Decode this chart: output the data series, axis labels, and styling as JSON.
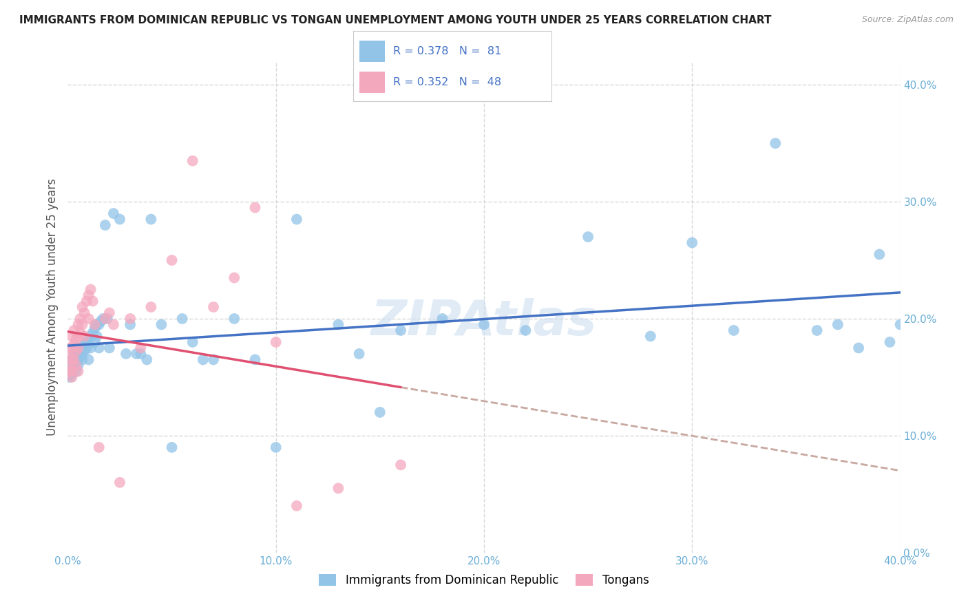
{
  "title": "IMMIGRANTS FROM DOMINICAN REPUBLIC VS TONGAN UNEMPLOYMENT AMONG YOUTH UNDER 25 YEARS CORRELATION CHART",
  "source": "Source: ZipAtlas.com",
  "ylabel": "Unemployment Among Youth under 25 years",
  "xlim": [
    0,
    0.4
  ],
  "ylim": [
    0,
    0.42
  ],
  "legend_r1": "R = 0.378",
  "legend_n1": "N =  81",
  "legend_r2": "R = 0.352",
  "legend_n2": "N =  48",
  "blue_color": "#92C4E8",
  "pink_color": "#F4A8BE",
  "trend_blue": "#4472C4",
  "trend_pink": "#E05070",
  "trend_dashed_color": "#C8A8A0",
  "background_color": "#FFFFFF",
  "grid_color": "#D8D8D8",
  "blue_x": [
    0.001,
    0.001,
    0.001,
    0.001,
    0.002,
    0.002,
    0.002,
    0.002,
    0.003,
    0.003,
    0.003,
    0.004,
    0.004,
    0.004,
    0.004,
    0.005,
    0.005,
    0.005,
    0.006,
    0.006,
    0.006,
    0.007,
    0.007,
    0.007,
    0.008,
    0.008,
    0.009,
    0.009,
    0.01,
    0.01,
    0.01,
    0.011,
    0.011,
    0.012,
    0.013,
    0.013,
    0.014,
    0.014,
    0.015,
    0.015,
    0.016,
    0.017,
    0.018,
    0.019,
    0.02,
    0.022,
    0.025,
    0.028,
    0.03,
    0.033,
    0.035,
    0.038,
    0.04,
    0.045,
    0.05,
    0.055,
    0.06,
    0.065,
    0.07,
    0.08,
    0.09,
    0.1,
    0.11,
    0.13,
    0.14,
    0.15,
    0.16,
    0.18,
    0.2,
    0.22,
    0.25,
    0.28,
    0.3,
    0.32,
    0.34,
    0.36,
    0.37,
    0.38,
    0.39,
    0.395,
    0.4
  ],
  "blue_y": [
    0.155,
    0.158,
    0.152,
    0.15,
    0.165,
    0.155,
    0.16,
    0.153,
    0.165,
    0.17,
    0.158,
    0.168,
    0.162,
    0.155,
    0.175,
    0.17,
    0.165,
    0.16,
    0.172,
    0.168,
    0.175,
    0.175,
    0.17,
    0.165,
    0.178,
    0.172,
    0.18,
    0.175,
    0.182,
    0.178,
    0.165,
    0.185,
    0.175,
    0.188,
    0.192,
    0.18,
    0.195,
    0.185,
    0.195,
    0.175,
    0.198,
    0.2,
    0.28,
    0.2,
    0.175,
    0.29,
    0.285,
    0.17,
    0.195,
    0.17,
    0.17,
    0.165,
    0.285,
    0.195,
    0.09,
    0.2,
    0.18,
    0.165,
    0.165,
    0.2,
    0.165,
    0.09,
    0.285,
    0.195,
    0.17,
    0.12,
    0.19,
    0.2,
    0.195,
    0.19,
    0.27,
    0.185,
    0.265,
    0.19,
    0.35,
    0.19,
    0.195,
    0.175,
    0.255,
    0.18,
    0.195
  ],
  "pink_x": [
    0.001,
    0.001,
    0.001,
    0.001,
    0.002,
    0.002,
    0.002,
    0.002,
    0.002,
    0.003,
    0.003,
    0.003,
    0.004,
    0.004,
    0.004,
    0.005,
    0.005,
    0.005,
    0.005,
    0.006,
    0.006,
    0.007,
    0.007,
    0.008,
    0.008,
    0.009,
    0.01,
    0.01,
    0.011,
    0.012,
    0.013,
    0.015,
    0.018,
    0.02,
    0.022,
    0.025,
    0.03,
    0.035,
    0.04,
    0.05,
    0.06,
    0.07,
    0.08,
    0.09,
    0.1,
    0.11,
    0.13,
    0.16
  ],
  "pink_y": [
    0.175,
    0.168,
    0.16,
    0.155,
    0.185,
    0.175,
    0.165,
    0.155,
    0.15,
    0.19,
    0.178,
    0.165,
    0.182,
    0.172,
    0.16,
    0.195,
    0.185,
    0.175,
    0.155,
    0.2,
    0.188,
    0.21,
    0.195,
    0.205,
    0.185,
    0.215,
    0.22,
    0.2,
    0.225,
    0.215,
    0.195,
    0.09,
    0.2,
    0.205,
    0.195,
    0.06,
    0.2,
    0.175,
    0.21,
    0.25,
    0.335,
    0.21,
    0.235,
    0.295,
    0.18,
    0.04,
    0.055,
    0.075
  ],
  "watermark_text": "ZIPAtlas",
  "watermark_color": "#C8DCF0",
  "title_fontsize": 11,
  "source_fontsize": 9,
  "tick_color": "#6BAED6",
  "ylabel_color": "#555555",
  "legend_text_color": "#4472C4"
}
